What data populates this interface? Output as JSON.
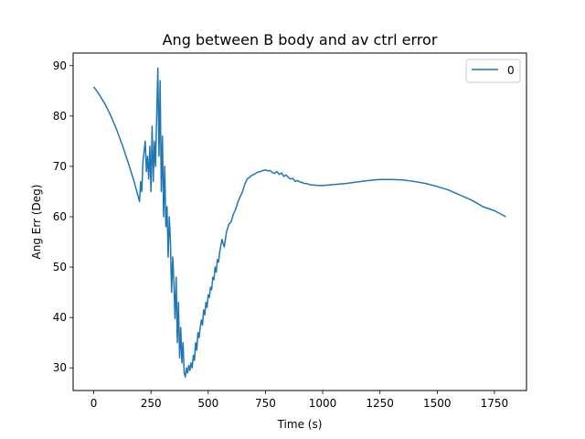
{
  "chart_data": {
    "type": "line",
    "title": "Ang between B body and av ctrl error",
    "xlabel": "Time (s)",
    "ylabel": "Ang Err (Deg)",
    "xlim": [
      -90,
      1890
    ],
    "ylim": [
      25.5,
      92.5
    ],
    "xticks": [
      0,
      250,
      500,
      750,
      1000,
      1250,
      1500,
      1750
    ],
    "yticks": [
      30,
      40,
      50,
      60,
      70,
      80,
      90
    ],
    "grid": false,
    "legend_position": "top-right",
    "series": [
      {
        "name": "0",
        "color": "#1f77b4",
        "x": [
          0,
          25,
          50,
          75,
          100,
          125,
          150,
          175,
          200,
          205,
          210,
          215,
          220,
          225,
          230,
          235,
          240,
          245,
          250,
          255,
          260,
          265,
          270,
          275,
          280,
          285,
          290,
          295,
          300,
          305,
          310,
          315,
          320,
          325,
          330,
          335,
          340,
          345,
          350,
          355,
          360,
          365,
          370,
          375,
          380,
          385,
          390,
          395,
          400,
          405,
          410,
          415,
          420,
          425,
          430,
          435,
          440,
          445,
          450,
          455,
          460,
          465,
          470,
          475,
          480,
          485,
          490,
          495,
          500,
          505,
          510,
          515,
          520,
          525,
          530,
          535,
          540,
          545,
          550,
          560,
          570,
          580,
          590,
          600,
          610,
          620,
          630,
          640,
          650,
          660,
          670,
          680,
          690,
          700,
          710,
          720,
          730,
          740,
          750,
          760,
          770,
          780,
          790,
          800,
          810,
          820,
          830,
          840,
          850,
          860,
          870,
          880,
          890,
          900,
          910,
          920,
          930,
          940,
          950,
          960,
          980,
          1000,
          1050,
          1100,
          1150,
          1200,
          1250,
          1300,
          1350,
          1400,
          1450,
          1500,
          1550,
          1600,
          1650,
          1700,
          1750,
          1800
        ],
        "y": [
          85.8,
          84.2,
          82.3,
          80.0,
          77.3,
          74.2,
          70.8,
          67.2,
          63.0,
          67.0,
          65.0,
          71.0,
          73.0,
          75.0,
          69.0,
          72.0,
          67.5,
          74.0,
          65.0,
          78.0,
          67.0,
          75.0,
          70.0,
          80.0,
          89.5,
          72.0,
          87.0,
          65.0,
          76.0,
          60.0,
          70.0,
          58.0,
          62.0,
          52.0,
          60.0,
          55.0,
          45.0,
          52.0,
          47.0,
          39.8,
          48.0,
          35.0,
          43.0,
          32.0,
          38.0,
          31.0,
          35.0,
          29.0,
          28.2,
          30.0,
          29.0,
          30.5,
          29.5,
          31.0,
          30.0,
          32.5,
          31.5,
          35.0,
          33.5,
          37.0,
          36.0,
          38.0,
          39.5,
          38.5,
          41.5,
          40.5,
          43.0,
          42.0,
          44.5,
          44.0,
          46.0,
          45.5,
          48.0,
          47.5,
          50.0,
          49.0,
          51.5,
          51.0,
          53.0,
          55.5,
          54.0,
          57.0,
          58.5,
          59.0,
          60.5,
          61.5,
          63.0,
          64.0,
          65.0,
          66.5,
          67.5,
          67.8,
          68.2,
          68.4,
          68.7,
          68.9,
          69.0,
          69.2,
          69.3,
          69.1,
          69.2,
          68.8,
          68.6,
          69.0,
          68.4,
          68.7,
          68.0,
          68.3,
          67.8,
          67.5,
          67.6,
          67.0,
          67.2,
          66.9,
          66.8,
          66.6,
          66.6,
          66.4,
          66.3,
          66.3,
          66.2,
          66.2,
          66.4,
          66.6,
          66.9,
          67.2,
          67.4,
          67.4,
          67.3,
          67.0,
          66.6,
          66.0,
          65.3,
          64.3,
          63.3,
          62.0,
          61.2,
          60.0
        ]
      }
    ]
  }
}
